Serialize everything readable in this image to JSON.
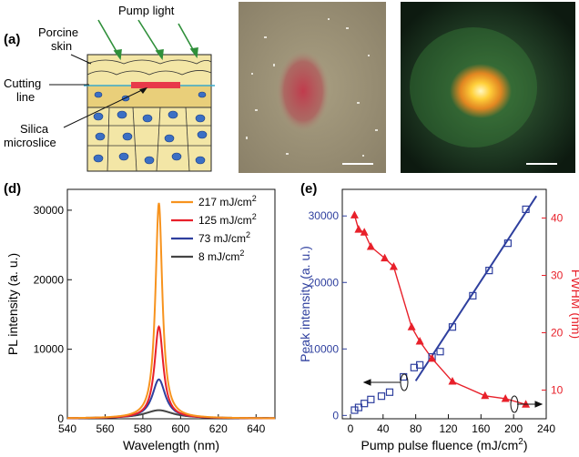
{
  "panel_a": {
    "tag": "(a)",
    "labels": {
      "pump": "Pump light",
      "porcine_1": "Porcine",
      "porcine_2": "skin",
      "cutting_1": "Cutting",
      "cutting_2": "line",
      "silica_1": "Silica",
      "silica_2": "microslice"
    },
    "colors": {
      "skin": "#f3e6a6",
      "cell": "#3b6fc4",
      "slice": "#e8394a",
      "arrow": "#2f8f3a"
    }
  },
  "chart_data": [
    {
      "type": "line",
      "tag": "(d)",
      "xlabel": "Wavelength (nm)",
      "ylabel": "PL intensity (a. u.)",
      "xlim": [
        540,
        650
      ],
      "ylim": [
        0,
        33000
      ],
      "xticks": [
        540,
        560,
        580,
        600,
        620,
        640
      ],
      "yticks": [
        0,
        10000,
        20000,
        30000
      ],
      "peak_wavelength": 588.5,
      "series": [
        {
          "name": "217 mJ/cm",
          "sup": "2",
          "color": "#f7931e",
          "peak": 31000,
          "base": 40,
          "hwhm": 2.2
        },
        {
          "name": "125 mJ/cm",
          "sup": "2",
          "color": "#e8202a",
          "peak": 13200,
          "base": 50,
          "hwhm": 2.8
        },
        {
          "name": "73 mJ/cm",
          "sup": "2",
          "color": "#2e3f9e",
          "peak": 5600,
          "base": 60,
          "hwhm": 4.2
        },
        {
          "name": "8 mJ/cm",
          "sup": "2",
          "color": "#444444",
          "peak": 1150,
          "base": 80,
          "hwhm": 9
        }
      ]
    },
    {
      "type": "scatter",
      "tag": "(e)",
      "xlabel": "Pump pulse fluence (mJ/cm",
      "xlabel_sup": "2",
      "xlabel_end": ")",
      "ylabel": "Peak intensity (a. u.)",
      "y2label": "FWHM (nm)",
      "xlim": [
        -10,
        240
      ],
      "ylim": [
        -500,
        34000
      ],
      "y2lim": [
        5,
        45
      ],
      "xticks": [
        0,
        40,
        80,
        120,
        160,
        200,
        240
      ],
      "yticks": [
        0,
        10000,
        20000,
        30000
      ],
      "y2ticks": [
        10,
        20,
        30,
        40
      ],
      "colors": {
        "left": "#2e3f9e",
        "right": "#e8202a"
      },
      "fit_line": {
        "x": [
          80,
          228
        ],
        "y": [
          5200,
          33000
        ]
      },
      "series": [
        {
          "axis": "left",
          "marker": "open-square",
          "x": [
            5,
            10,
            17,
            25,
            38,
            48,
            65,
            78,
            85,
            100,
            110,
            125,
            150,
            170,
            193,
            215
          ],
          "y": [
            800,
            1200,
            1800,
            2400,
            2900,
            3500,
            5800,
            7200,
            7600,
            8800,
            9600,
            13300,
            18000,
            21800,
            25900,
            31000
          ]
        },
        {
          "axis": "right",
          "marker": "filled-triangle",
          "x": [
            5,
            10,
            17,
            25,
            42,
            53,
            75,
            85,
            100,
            125,
            165,
            190,
            215
          ],
          "y": [
            40.5,
            38,
            37.5,
            35,
            33,
            31.5,
            21,
            18.5,
            15.5,
            11.5,
            9,
            8.5,
            7.5
          ]
        }
      ]
    }
  ]
}
